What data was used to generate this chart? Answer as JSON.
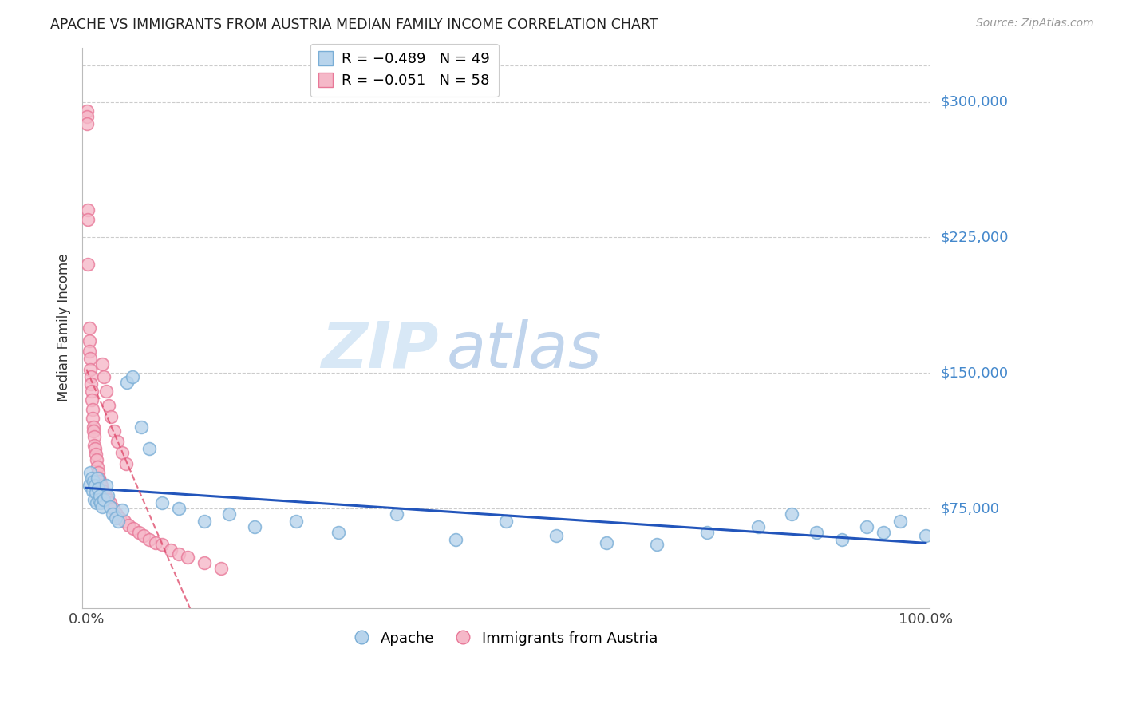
{
  "title": "APACHE VS IMMIGRANTS FROM AUSTRIA MEDIAN FAMILY INCOME CORRELATION CHART",
  "source": "Source: ZipAtlas.com",
  "ylabel": "Median Family Income",
  "ytick_labels": [
    "$75,000",
    "$150,000",
    "$225,000",
    "$300,000"
  ],
  "ytick_values": [
    75000,
    150000,
    225000,
    300000
  ],
  "ymin": 20000,
  "ymax": 330000,
  "xmin": -0.005,
  "xmax": 1.005,
  "background_color": "#ffffff",
  "grid_color": "#cccccc",
  "apache_color": "#b8d4ec",
  "austria_color": "#f5b8c8",
  "apache_edge": "#7aaed6",
  "austria_edge": "#e87898",
  "apache_line_color": "#2255bb",
  "austria_line_color": "#dd4466",
  "watermark": "ZIPatlas",
  "watermark_color": "#d0e0f4",
  "legend_r_apache": "R = -0.489",
  "legend_n_apache": "N = 49",
  "legend_r_austria": "R = -0.051",
  "legend_n_austria": "N = 58",
  "legend_label_apache": "Apache",
  "legend_label_austria": "Immigrants from Austria",
  "apache_x": [
    0.003,
    0.004,
    0.006,
    0.007,
    0.008,
    0.009,
    0.01,
    0.011,
    0.012,
    0.013,
    0.014,
    0.015,
    0.016,
    0.017,
    0.019,
    0.021,
    0.023,
    0.025,
    0.028,
    0.031,
    0.035,
    0.038,
    0.042,
    0.048,
    0.055,
    0.065,
    0.075,
    0.09,
    0.11,
    0.14,
    0.17,
    0.2,
    0.25,
    0.3,
    0.37,
    0.44,
    0.5,
    0.56,
    0.62,
    0.68,
    0.74,
    0.8,
    0.84,
    0.87,
    0.9,
    0.93,
    0.95,
    0.97,
    1.0
  ],
  "apache_y": [
    88000,
    95000,
    92000,
    85000,
    90000,
    80000,
    88000,
    84000,
    78000,
    92000,
    86000,
    80000,
    82000,
    78000,
    76000,
    80000,
    88000,
    82000,
    76000,
    72000,
    70000,
    68000,
    74000,
    145000,
    148000,
    120000,
    108000,
    78000,
    75000,
    68000,
    72000,
    65000,
    68000,
    62000,
    72000,
    58000,
    68000,
    60000,
    56000,
    55000,
    62000,
    65000,
    72000,
    62000,
    58000,
    65000,
    62000,
    68000,
    60000
  ],
  "austria_x": [
    0.001,
    0.001,
    0.001,
    0.002,
    0.002,
    0.002,
    0.003,
    0.003,
    0.003,
    0.004,
    0.004,
    0.005,
    0.005,
    0.006,
    0.006,
    0.007,
    0.007,
    0.008,
    0.008,
    0.009,
    0.009,
    0.01,
    0.011,
    0.012,
    0.013,
    0.014,
    0.015,
    0.016,
    0.018,
    0.02,
    0.022,
    0.025,
    0.028,
    0.032,
    0.036,
    0.04,
    0.045,
    0.05,
    0.056,
    0.062,
    0.068,
    0.075,
    0.082,
    0.09,
    0.1,
    0.11,
    0.12,
    0.14,
    0.16,
    0.019,
    0.021,
    0.023,
    0.026,
    0.029,
    0.033,
    0.037,
    0.042,
    0.047
  ],
  "austria_y": [
    295000,
    292000,
    288000,
    240000,
    235000,
    210000,
    175000,
    168000,
    162000,
    158000,
    152000,
    148000,
    144000,
    140000,
    135000,
    130000,
    125000,
    120000,
    118000,
    115000,
    110000,
    108000,
    105000,
    102000,
    98000,
    95000,
    92000,
    90000,
    88000,
    85000,
    82000,
    80000,
    78000,
    75000,
    72000,
    70000,
    68000,
    66000,
    64000,
    62000,
    60000,
    58000,
    56000,
    55000,
    52000,
    50000,
    48000,
    45000,
    42000,
    155000,
    148000,
    140000,
    132000,
    126000,
    118000,
    112000,
    106000,
    100000
  ]
}
